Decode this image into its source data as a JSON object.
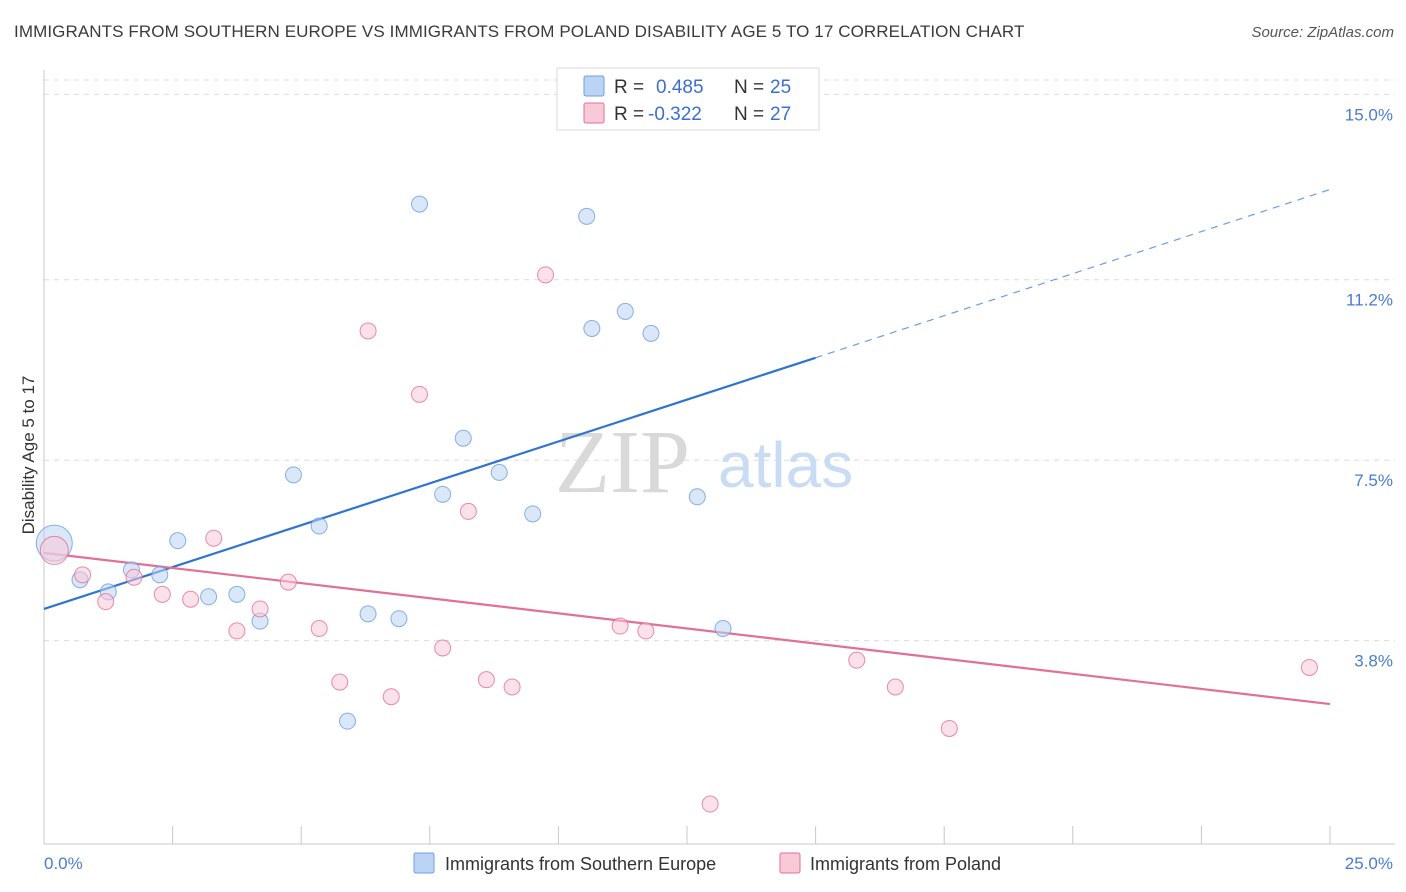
{
  "title": "IMMIGRANTS FROM SOUTHERN EUROPE VS IMMIGRANTS FROM POLAND DISABILITY AGE 5 TO 17 CORRELATION CHART",
  "source": "Source: ZipAtlas.com",
  "watermark": {
    "zip": "ZIP",
    "atlas": "atlas"
  },
  "chart_data": {
    "type": "scatter",
    "title": "IMMIGRANTS FROM SOUTHERN EUROPE VS IMMIGRANTS FROM POLAND DISABILITY AGE 5 TO 17 CORRELATION CHART",
    "xlabel": "",
    "ylabel": "Disability Age 5 to 17",
    "xlim": [
      0,
      25
    ],
    "ylim": [
      0,
      15.5
    ],
    "x_tick_labels": [
      "0.0%",
      "25.0%"
    ],
    "y_ticks": [
      3.8,
      7.5,
      11.2,
      15.0
    ],
    "y_tick_labels": [
      "3.8%",
      "7.5%",
      "11.2%",
      "15.0%"
    ],
    "grid": "horizontal dashed",
    "legend": {
      "placement": "top-center",
      "rows": [
        {
          "r_label": "R =",
          "r_value": "0.485",
          "n_label": "N =",
          "n_value": "25"
        },
        {
          "r_label": "R =",
          "r_value": "-0.322",
          "n_label": "N =",
          "n_value": "27"
        }
      ]
    },
    "series": [
      {
        "name": "Immigrants from Southern Europe",
        "color": "#6c9ee0",
        "fill": "#bcd4f3",
        "points": [
          [
            0.2,
            5.8
          ],
          [
            0.7,
            5.05
          ],
          [
            1.25,
            4.8
          ],
          [
            1.7,
            5.25
          ],
          [
            2.25,
            5.15
          ],
          [
            2.6,
            5.85
          ],
          [
            3.2,
            4.7
          ],
          [
            3.75,
            4.75
          ],
          [
            4.2,
            4.2
          ],
          [
            4.85,
            7.2
          ],
          [
            5.35,
            6.15
          ],
          [
            5.9,
            2.15
          ],
          [
            6.3,
            4.35
          ],
          [
            6.9,
            4.25
          ],
          [
            7.3,
            12.75
          ],
          [
            7.75,
            6.8
          ],
          [
            8.15,
            7.95
          ],
          [
            8.85,
            7.25
          ],
          [
            9.5,
            6.4
          ],
          [
            10.55,
            12.5
          ],
          [
            10.65,
            10.2
          ],
          [
            11.3,
            10.55
          ],
          [
            11.8,
            10.1
          ],
          [
            12.7,
            6.75
          ],
          [
            13.2,
            4.05
          ]
        ],
        "trend": {
          "x": [
            0,
            15
          ],
          "y": [
            4.45,
            9.6
          ],
          "extension": {
            "x": [
              15,
              25
            ],
            "y": [
              9.6,
              13.05
            ]
          }
        }
      },
      {
        "name": "Immigrants from Poland",
        "color": "#e46f96",
        "fill": "#f8c9d7",
        "points": [
          [
            0.2,
            5.65
          ],
          [
            0.75,
            5.15
          ],
          [
            1.2,
            4.6
          ],
          [
            1.75,
            5.1
          ],
          [
            2.3,
            4.75
          ],
          [
            2.85,
            4.65
          ],
          [
            3.3,
            5.9
          ],
          [
            3.75,
            4.0
          ],
          [
            4.2,
            4.45
          ],
          [
            4.75,
            5.0
          ],
          [
            5.35,
            4.05
          ],
          [
            5.75,
            2.95
          ],
          [
            6.3,
            10.15
          ],
          [
            6.75,
            2.65
          ],
          [
            7.3,
            8.85
          ],
          [
            7.75,
            3.65
          ],
          [
            8.25,
            6.45
          ],
          [
            8.6,
            3.0
          ],
          [
            9.1,
            2.85
          ],
          [
            9.75,
            11.3
          ],
          [
            11.2,
            4.1
          ],
          [
            11.7,
            4.0
          ],
          [
            15.8,
            3.4
          ],
          [
            16.55,
            2.85
          ],
          [
            17.6,
            2.0
          ],
          [
            12.95,
            0.45
          ],
          [
            24.6,
            3.25
          ]
        ],
        "trend": {
          "x": [
            0,
            25
          ],
          "y": [
            5.6,
            2.5
          ]
        }
      }
    ]
  }
}
